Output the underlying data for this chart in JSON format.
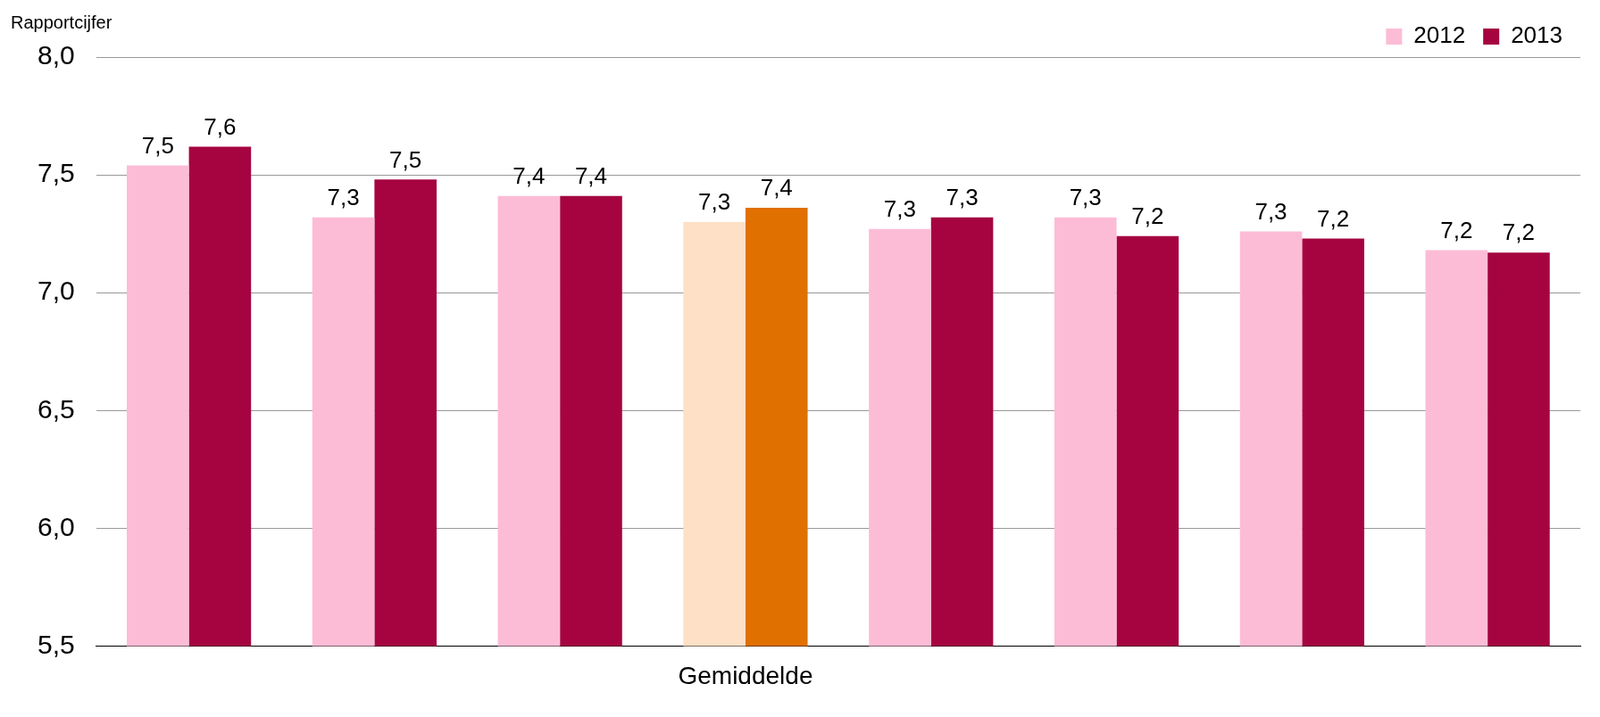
{
  "chart_data": {
    "type": "bar",
    "ylabel": "Rapportcijfer",
    "categories": [
      null,
      null,
      null,
      "Gemiddelde",
      null,
      null,
      null,
      null
    ],
    "series": [
      {
        "name": "2012",
        "color": "#fdbcd5",
        "colors": [
          "#fdbcd5",
          "#fdbcd5",
          "#fdbcd5",
          "#fde0c5",
          "#fdbcd5",
          "#fdbcd5",
          "#fdbcd5",
          "#fdbcd5"
        ],
        "values": [
          7.54,
          7.32,
          7.41,
          7.3,
          7.27,
          7.32,
          7.26,
          7.18
        ],
        "value_labels": [
          "7,5",
          "7,3",
          "7,4",
          "7,3",
          "7,3",
          "7,3",
          "7,3",
          "7,2"
        ]
      },
      {
        "name": "2013",
        "color": "#a50440",
        "colors": [
          "#a50440",
          "#a50440",
          "#a50440",
          "#e07000",
          "#a50440",
          "#a50440",
          "#a50440",
          "#a50440"
        ],
        "values": [
          7.62,
          7.48,
          7.41,
          7.36,
          7.32,
          7.24,
          7.23,
          7.17
        ],
        "value_labels": [
          "7,6",
          "7,5",
          "7,4",
          "7,4",
          "7,3",
          "7,2",
          "7,2",
          "7,2"
        ]
      }
    ],
    "ylim": [
      5.5,
      8.0
    ],
    "yticks": [
      {
        "value": 5.5,
        "label": "5,5"
      },
      {
        "value": 6.0,
        "label": "6,0"
      },
      {
        "value": 6.5,
        "label": "6,5"
      },
      {
        "value": 7.0,
        "label": "7,0"
      },
      {
        "value": 7.5,
        "label": "7,5"
      },
      {
        "value": 8.0,
        "label": "8,0"
      }
    ],
    "grid": "y",
    "legend": "top right"
  }
}
